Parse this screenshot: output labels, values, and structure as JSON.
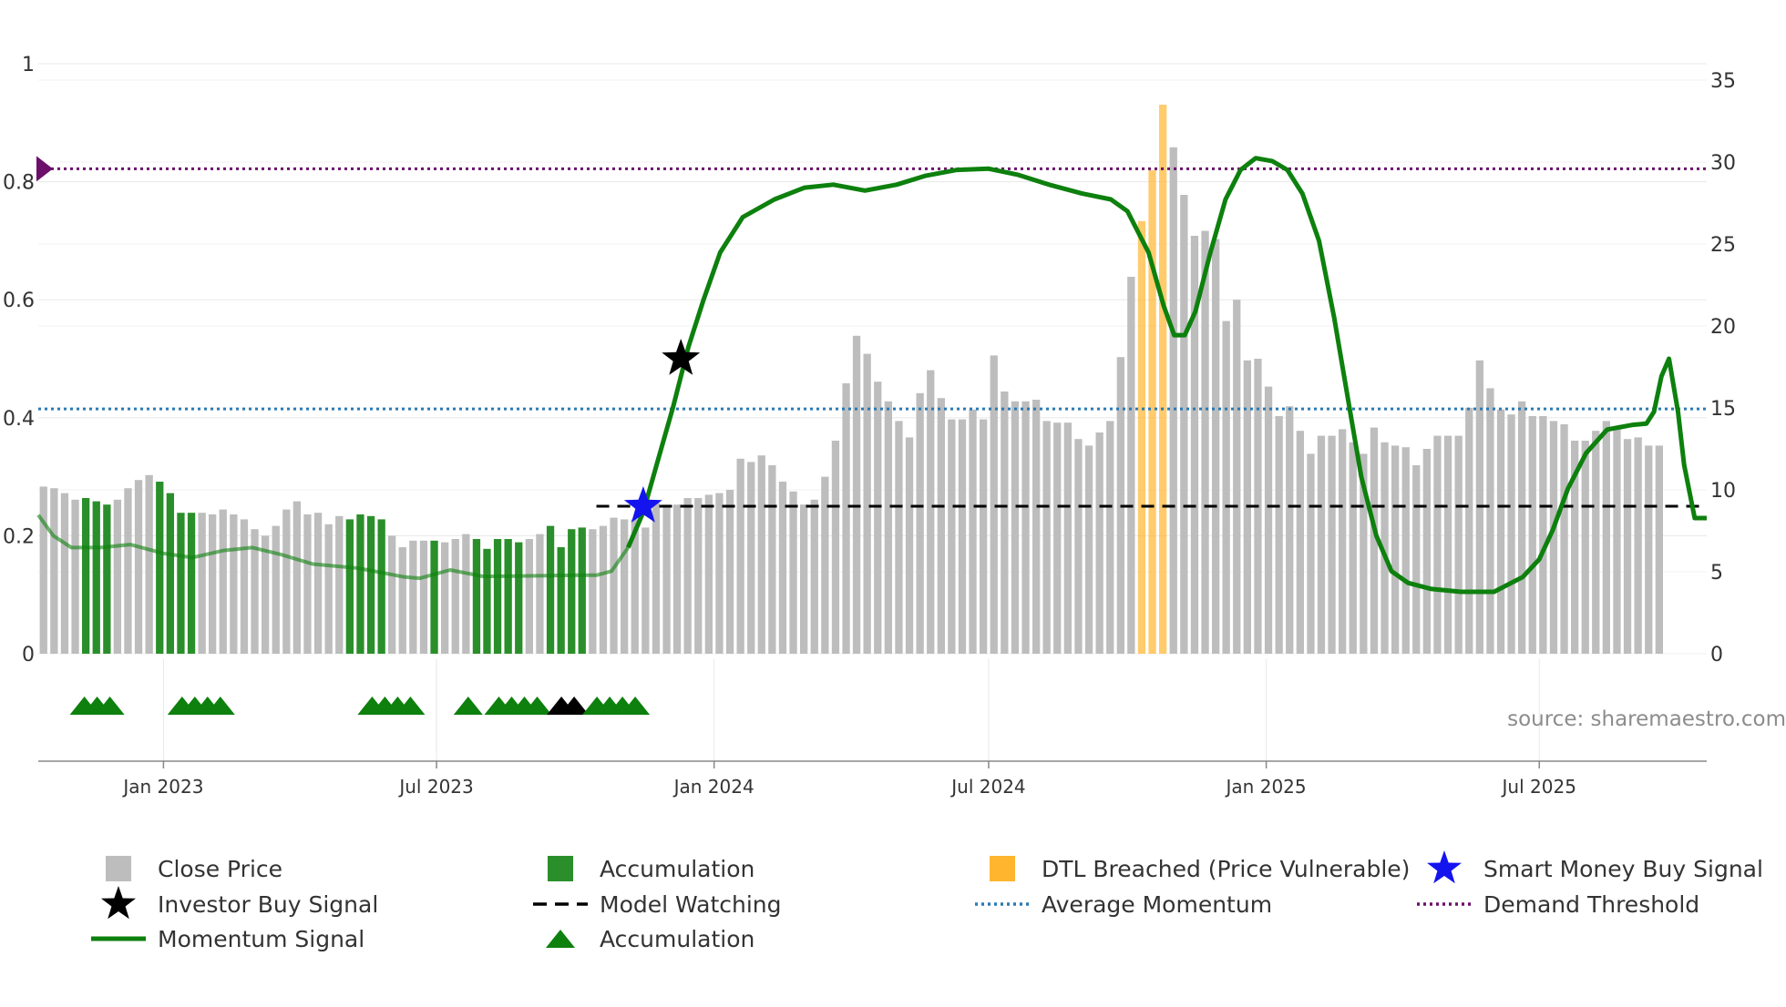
{
  "chart_data": {
    "type": "bar",
    "title": "",
    "source": "source: sharemaestro.com",
    "left_axis": {
      "ylim": [
        0,
        1
      ],
      "ticks": [
        0,
        0.2,
        0.4,
        0.6,
        0.8,
        1
      ],
      "tick_labels": [
        "0",
        "0.2",
        "0.4",
        "0.6",
        "0.8",
        "1"
      ]
    },
    "right_axis": {
      "ylim": [
        0,
        35
      ],
      "ticks": [
        0,
        5,
        10,
        15,
        20,
        25,
        30,
        35
      ],
      "tick_labels": [
        "0",
        "5",
        "10",
        "15",
        "20",
        "25",
        "30",
        "35"
      ]
    },
    "x_axis": {
      "start": "2022-10-10",
      "end": "2025-10-20",
      "ticks": [
        "2023-01-01",
        "2023-07-01",
        "2024-01-01",
        "2024-07-01",
        "2025-01-01",
        "2025-07-01"
      ],
      "tick_labels": [
        "Jan 2023",
        "Jul 2023",
        "Jan 2024",
        "Jul 2024",
        "Jan 2025",
        "Jul 2025"
      ]
    },
    "weekly_start": "2022-10-10",
    "close_price": [
      10.2,
      10.1,
      9.8,
      9.4,
      9.5,
      9.3,
      9.1,
      9.4,
      10.1,
      10.6,
      10.9,
      10.5,
      9.8,
      8.6,
      8.6,
      8.6,
      8.5,
      8.8,
      8.5,
      8.2,
      7.6,
      7.2,
      7.8,
      8.8,
      9.3,
      8.5,
      8.6,
      7.9,
      8.4,
      8.2,
      8.5,
      8.4,
      8.2,
      7.2,
      6.5,
      6.9,
      6.9,
      6.9,
      6.8,
      7.0,
      7.3,
      7.0,
      6.4,
      7.0,
      7.0,
      6.8,
      7.0,
      7.3,
      7.8,
      6.5,
      7.6,
      7.7,
      7.6,
      7.8,
      8.3,
      8.2,
      8.2,
      7.7,
      9.2,
      9.1,
      9.1,
      9.5,
      9.5,
      9.7,
      9.8,
      10.0,
      11.9,
      11.7,
      12.1,
      11.5,
      10.5,
      9.9,
      9.1,
      9.4,
      10.8,
      13.0,
      16.5,
      19.4,
      18.3,
      16.6,
      15.4,
      14.2,
      13.2,
      15.9,
      17.3,
      15.6,
      14.3,
      14.3,
      14.9,
      14.3,
      18.2,
      16.0,
      15.4,
      15.4,
      15.5,
      14.2,
      14.1,
      14.1,
      13.1,
      12.7,
      13.5,
      14.2,
      18.1,
      23.0,
      26.4,
      29.5,
      33.5,
      30.9,
      28.0,
      25.5,
      25.8,
      25.3,
      20.3,
      21.6,
      17.9,
      18.0,
      16.3,
      14.5,
      15.1,
      13.6,
      12.2,
      13.3,
      13.3,
      13.7,
      12.9,
      12.2,
      13.8,
      12.9,
      12.7,
      12.6,
      11.5,
      12.5,
      13.3,
      13.3,
      13.3,
      15.0,
      17.9,
      16.2,
      14.9,
      14.6,
      15.4,
      14.5,
      14.5,
      14.2,
      14.0,
      13.0,
      13.0,
      13.6,
      14.2,
      13.7,
      13.1,
      13.2,
      12.7,
      12.7
    ],
    "bar_color_codes": "ggggggggggggggggggggggggggggggggggggggggggggggggggggggggggggggggggggggggggggggggggggggggggggggggggggggggggggggggggggggggggggggggggggggggggggggggggggggggggggggggggg",
    "accumulation_weeks": [
      4,
      5,
      6,
      11,
      12,
      13,
      14,
      29,
      30,
      31,
      32,
      37,
      41,
      42,
      43,
      44,
      45,
      48,
      49,
      50,
      51
    ],
    "dtl_breached_weeks": [
      104,
      105,
      106
    ],
    "momentum_signal": [
      [
        "2022-10-10",
        0.235
      ],
      [
        "2022-10-20",
        0.2
      ],
      [
        "2022-11-01",
        0.18
      ],
      [
        "2022-11-20",
        0.18
      ],
      [
        "2022-12-10",
        0.185
      ],
      [
        "2023-01-01",
        0.17
      ],
      [
        "2023-01-20",
        0.163
      ],
      [
        "2023-02-10",
        0.175
      ],
      [
        "2023-03-01",
        0.18
      ],
      [
        "2023-03-20",
        0.168
      ],
      [
        "2023-04-10",
        0.152
      ],
      [
        "2023-05-10",
        0.145
      ],
      [
        "2023-06-10",
        0.13
      ],
      [
        "2023-06-20",
        0.128
      ],
      [
        "2023-07-10",
        0.142
      ],
      [
        "2023-08-01",
        0.131
      ],
      [
        "2023-09-01",
        0.132
      ],
      [
        "2023-10-01",
        0.133
      ],
      [
        "2023-10-15",
        0.133
      ],
      [
        "2023-10-25",
        0.14
      ],
      [
        "2023-11-05",
        0.18
      ],
      [
        "2023-11-15",
        0.24
      ],
      [
        "2023-11-25",
        0.33
      ],
      [
        "2023-12-05",
        0.42
      ],
      [
        "2023-12-15",
        0.52
      ],
      [
        "2023-12-25",
        0.6
      ],
      [
        "2024-01-05",
        0.68
      ],
      [
        "2024-01-20",
        0.74
      ],
      [
        "2024-02-10",
        0.77
      ],
      [
        "2024-03-01",
        0.79
      ],
      [
        "2024-03-20",
        0.795
      ],
      [
        "2024-04-10",
        0.785
      ],
      [
        "2024-05-01",
        0.795
      ],
      [
        "2024-05-20",
        0.81
      ],
      [
        "2024-06-10",
        0.82
      ],
      [
        "2024-07-01",
        0.822
      ],
      [
        "2024-07-20",
        0.812
      ],
      [
        "2024-08-10",
        0.795
      ],
      [
        "2024-09-01",
        0.78
      ],
      [
        "2024-09-20",
        0.77
      ],
      [
        "2024-10-01",
        0.75
      ],
      [
        "2024-10-15",
        0.68
      ],
      [
        "2024-10-25",
        0.59
      ],
      [
        "2024-11-01",
        0.54
      ],
      [
        "2024-11-08",
        0.54
      ],
      [
        "2024-11-15",
        0.58
      ],
      [
        "2024-11-25",
        0.68
      ],
      [
        "2024-12-05",
        0.77
      ],
      [
        "2024-12-15",
        0.82
      ],
      [
        "2024-12-25",
        0.84
      ],
      [
        "2025-01-05",
        0.835
      ],
      [
        "2025-01-15",
        0.82
      ],
      [
        "2025-01-25",
        0.78
      ],
      [
        "2025-02-05",
        0.7
      ],
      [
        "2025-02-15",
        0.57
      ],
      [
        "2025-02-25",
        0.42
      ],
      [
        "2025-03-05",
        0.3
      ],
      [
        "2025-03-15",
        0.2
      ],
      [
        "2025-03-25",
        0.14
      ],
      [
        "2025-04-05",
        0.12
      ],
      [
        "2025-04-20",
        0.11
      ],
      [
        "2025-05-10",
        0.105
      ],
      [
        "2025-06-01",
        0.105
      ],
      [
        "2025-06-20",
        0.13
      ],
      [
        "2025-07-01",
        0.16
      ],
      [
        "2025-07-10",
        0.21
      ],
      [
        "2025-07-20",
        0.28
      ],
      [
        "2025-08-01",
        0.34
      ],
      [
        "2025-08-15",
        0.38
      ],
      [
        "2025-09-01",
        0.388
      ],
      [
        "2025-09-10",
        0.39
      ],
      [
        "2025-09-15",
        0.41
      ],
      [
        "2025-09-20",
        0.47
      ],
      [
        "2025-09-25",
        0.5
      ],
      [
        "2025-10-01",
        0.41
      ],
      [
        "2025-10-05",
        0.32
      ],
      [
        "2025-10-12",
        0.23
      ],
      [
        "2025-10-20",
        0.23
      ]
    ],
    "model_watching": {
      "value": 0.25,
      "from": "2023-10-15",
      "to": "2025-10-20"
    },
    "average_momentum": 0.415,
    "demand_threshold": 0.822,
    "smart_money_buy_signal": [
      [
        "2023-11-15",
        0.25
      ]
    ],
    "investor_buy_signal": [
      [
        "2023-12-10",
        0.5
      ]
    ],
    "accumulation_markers": [
      {
        "date": "2022-11-18",
        "count": 3,
        "color": "green"
      },
      {
        "date": "2023-01-26",
        "count": 4,
        "color": "green"
      },
      {
        "date": "2023-06-01",
        "count": 4,
        "color": "green"
      },
      {
        "date": "2023-07-22",
        "count": 1,
        "color": "green"
      },
      {
        "date": "2023-08-24",
        "count": 4,
        "color": "green"
      },
      {
        "date": "2023-09-26",
        "count": 2,
        "color": "black"
      },
      {
        "date": "2023-10-28",
        "count": 4,
        "color": "green"
      }
    ],
    "legend": [
      {
        "label": "Close Price",
        "symbol": "square",
        "color": "#bdbdbd"
      },
      {
        "label": "Accumulation",
        "symbol": "square",
        "color": "#2a8f2a"
      },
      {
        "label": "DTL Breached (Price Vulnerable)",
        "symbol": "square",
        "color": "#ffb52e"
      },
      {
        "label": "Smart Money Buy Signal",
        "symbol": "star",
        "color": "#1414ee"
      },
      {
        "label": "Investor Buy Signal",
        "symbol": "star",
        "color": "#000000"
      },
      {
        "label": "Model Watching",
        "symbol": "dash",
        "color": "#000000"
      },
      {
        "label": "Average Momentum",
        "symbol": "dot",
        "color": "#2a7ab5"
      },
      {
        "label": "Demand Threshold",
        "symbol": "dot",
        "color": "#6b0f6b"
      },
      {
        "label": "Momentum Signal",
        "symbol": "line",
        "color": "#0d800d"
      },
      {
        "label": "Accumulation",
        "symbol": "triangle",
        "color": "#0d800d"
      }
    ],
    "colors": {
      "close": "#bdbdbd",
      "accumulation": "#2a8f2a",
      "dtl": "#ffb52e",
      "momentum": "#0d800d",
      "model_watching": "#000000",
      "average_momentum": "#2a7ab5",
      "demand_threshold": "#6b0f6b",
      "smart_money": "#1414ee",
      "investor": "#000000",
      "grid": "#e8e8e8",
      "axis": "#888888"
    }
  }
}
